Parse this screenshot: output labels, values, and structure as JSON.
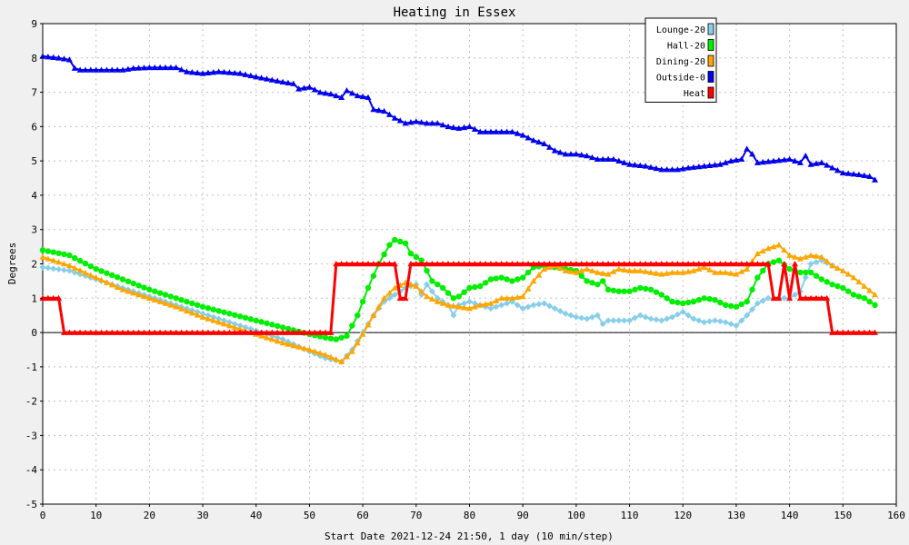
{
  "chart_data": {
    "type": "line",
    "title": "Heating in Essex",
    "xlabel": "Start Date 2021-12-24 21:50, 1 day (10 min/step)",
    "ylabel": "Degrees",
    "xlim": [
      0,
      160
    ],
    "ylim": [
      -5,
      9
    ],
    "x_ticks": [
      0,
      10,
      20,
      30,
      40,
      50,
      60,
      70,
      80,
      90,
      100,
      110,
      120,
      130,
      140,
      150,
      160
    ],
    "y_ticks": [
      -5,
      -4,
      -3,
      -2,
      -1,
      0,
      1,
      2,
      3,
      4,
      5,
      6,
      7,
      8,
      9
    ],
    "grid": true,
    "legend_position": "top-right",
    "series": [
      {
        "name": "Lounge-20",
        "color": "#87ceeb",
        "marker": "diamond",
        "points": [
          [
            0,
            1.9
          ],
          [
            5,
            1.8
          ],
          [
            10,
            1.55
          ],
          [
            15,
            1.3
          ],
          [
            20,
            1.05
          ],
          [
            25,
            0.8
          ],
          [
            30,
            0.55
          ],
          [
            35,
            0.3
          ],
          [
            40,
            0.05
          ],
          [
            45,
            -0.2
          ],
          [
            50,
            -0.55
          ],
          [
            53,
            -0.75
          ],
          [
            56,
            -0.85
          ],
          [
            58,
            -0.5
          ],
          [
            60,
            0
          ],
          [
            62,
            0.5
          ],
          [
            64,
            0.9
          ],
          [
            66,
            1.1
          ],
          [
            68,
            1.3
          ],
          [
            70,
            1.4
          ],
          [
            71,
            1.1
          ],
          [
            72,
            1.4
          ],
          [
            74,
            1.0
          ],
          [
            76,
            0.8
          ],
          [
            77,
            0.5
          ],
          [
            78,
            0.8
          ],
          [
            80,
            0.9
          ],
          [
            82,
            0.8
          ],
          [
            84,
            0.7
          ],
          [
            86,
            0.8
          ],
          [
            88,
            0.9
          ],
          [
            90,
            0.7
          ],
          [
            92,
            0.8
          ],
          [
            94,
            0.85
          ],
          [
            96,
            0.7
          ],
          [
            98,
            0.55
          ],
          [
            100,
            0.45
          ],
          [
            102,
            0.4
          ],
          [
            104,
            0.5
          ],
          [
            105,
            0.25
          ],
          [
            106,
            0.35
          ],
          [
            110,
            0.35
          ],
          [
            112,
            0.5
          ],
          [
            114,
            0.4
          ],
          [
            116,
            0.35
          ],
          [
            118,
            0.45
          ],
          [
            120,
            0.6
          ],
          [
            122,
            0.4
          ],
          [
            124,
            0.3
          ],
          [
            126,
            0.35
          ],
          [
            128,
            0.3
          ],
          [
            130,
            0.2
          ],
          [
            132,
            0.5
          ],
          [
            134,
            0.85
          ],
          [
            136,
            1.0
          ],
          [
            138,
            1.0
          ],
          [
            140,
            1.0
          ],
          [
            142,
            1.2
          ],
          [
            144,
            2.0
          ],
          [
            146,
            2.1
          ],
          [
            148,
            1.95
          ]
        ]
      },
      {
        "name": "Hall-20",
        "color": "#00ee00",
        "marker": "circle",
        "points": [
          [
            0,
            2.4
          ],
          [
            5,
            2.25
          ],
          [
            10,
            1.85
          ],
          [
            15,
            1.55
          ],
          [
            20,
            1.25
          ],
          [
            25,
            1.0
          ],
          [
            30,
            0.75
          ],
          [
            35,
            0.55
          ],
          [
            40,
            0.35
          ],
          [
            45,
            0.15
          ],
          [
            50,
            -0.05
          ],
          [
            53,
            -0.15
          ],
          [
            55,
            -0.2
          ],
          [
            57,
            -0.1
          ],
          [
            59,
            0.5
          ],
          [
            61,
            1.3
          ],
          [
            63,
            2.0
          ],
          [
            65,
            2.55
          ],
          [
            66,
            2.7
          ],
          [
            68,
            2.6
          ],
          [
            69,
            2.3
          ],
          [
            71,
            2.1
          ],
          [
            73,
            1.5
          ],
          [
            75,
            1.3
          ],
          [
            77,
            1.0
          ],
          [
            78,
            1.05
          ],
          [
            80,
            1.3
          ],
          [
            82,
            1.35
          ],
          [
            84,
            1.55
          ],
          [
            86,
            1.6
          ],
          [
            88,
            1.5
          ],
          [
            90,
            1.6
          ],
          [
            92,
            1.9
          ],
          [
            94,
            1.95
          ],
          [
            96,
            1.9
          ],
          [
            98,
            1.85
          ],
          [
            100,
            1.8
          ],
          [
            102,
            1.5
          ],
          [
            104,
            1.4
          ],
          [
            105,
            1.5
          ],
          [
            106,
            1.25
          ],
          [
            108,
            1.2
          ],
          [
            110,
            1.2
          ],
          [
            112,
            1.3
          ],
          [
            114,
            1.25
          ],
          [
            116,
            1.1
          ],
          [
            118,
            0.9
          ],
          [
            120,
            0.85
          ],
          [
            122,
            0.9
          ],
          [
            124,
            1.0
          ],
          [
            126,
            0.95
          ],
          [
            128,
            0.8
          ],
          [
            130,
            0.75
          ],
          [
            132,
            0.9
          ],
          [
            134,
            1.6
          ],
          [
            136,
            2.0
          ],
          [
            138,
            2.1
          ],
          [
            140,
            1.85
          ],
          [
            142,
            1.75
          ],
          [
            144,
            1.75
          ],
          [
            146,
            1.55
          ],
          [
            148,
            1.4
          ],
          [
            150,
            1.3
          ],
          [
            152,
            1.1
          ],
          [
            154,
            1.0
          ],
          [
            156,
            0.8
          ]
        ]
      },
      {
        "name": "Dining-20",
        "color": "#ffa500",
        "marker": "triangle",
        "points": [
          [
            0,
            2.2
          ],
          [
            5,
            1.95
          ],
          [
            10,
            1.6
          ],
          [
            15,
            1.25
          ],
          [
            20,
            1.0
          ],
          [
            25,
            0.75
          ],
          [
            30,
            0.45
          ],
          [
            35,
            0.2
          ],
          [
            40,
            -0.05
          ],
          [
            45,
            -0.3
          ],
          [
            50,
            -0.5
          ],
          [
            53,
            -0.65
          ],
          [
            56,
            -0.85
          ],
          [
            58,
            -0.55
          ],
          [
            60,
            -0.05
          ],
          [
            62,
            0.5
          ],
          [
            64,
            1.0
          ],
          [
            66,
            1.3
          ],
          [
            68,
            1.45
          ],
          [
            70,
            1.35
          ],
          [
            72,
            1.05
          ],
          [
            74,
            0.9
          ],
          [
            76,
            0.8
          ],
          [
            78,
            0.75
          ],
          [
            80,
            0.7
          ],
          [
            82,
            0.8
          ],
          [
            84,
            0.85
          ],
          [
            86,
            1.0
          ],
          [
            88,
            1.0
          ],
          [
            90,
            1.05
          ],
          [
            92,
            1.5
          ],
          [
            94,
            1.85
          ],
          [
            96,
            1.95
          ],
          [
            98,
            1.8
          ],
          [
            100,
            1.75
          ],
          [
            102,
            1.85
          ],
          [
            104,
            1.75
          ],
          [
            106,
            1.7
          ],
          [
            108,
            1.85
          ],
          [
            110,
            1.8
          ],
          [
            112,
            1.8
          ],
          [
            114,
            1.75
          ],
          [
            116,
            1.7
          ],
          [
            118,
            1.75
          ],
          [
            120,
            1.75
          ],
          [
            122,
            1.8
          ],
          [
            124,
            1.9
          ],
          [
            126,
            1.75
          ],
          [
            128,
            1.75
          ],
          [
            130,
            1.7
          ],
          [
            132,
            1.85
          ],
          [
            134,
            2.3
          ],
          [
            136,
            2.45
          ],
          [
            138,
            2.55
          ],
          [
            140,
            2.25
          ],
          [
            142,
            2.15
          ],
          [
            144,
            2.25
          ],
          [
            146,
            2.2
          ],
          [
            148,
            1.95
          ],
          [
            150,
            1.8
          ],
          [
            152,
            1.6
          ],
          [
            154,
            1.35
          ],
          [
            156,
            1.1
          ]
        ]
      },
      {
        "name": "Outside-0",
        "color": "#0000ee",
        "marker": "triangle",
        "points": [
          [
            0,
            8.05
          ],
          [
            3,
            8.0
          ],
          [
            5,
            7.95
          ],
          [
            6,
            7.7
          ],
          [
            7,
            7.65
          ],
          [
            10,
            7.65
          ],
          [
            15,
            7.65
          ],
          [
            17,
            7.7
          ],
          [
            20,
            7.72
          ],
          [
            25,
            7.72
          ],
          [
            27,
            7.6
          ],
          [
            30,
            7.55
          ],
          [
            33,
            7.6
          ],
          [
            37,
            7.55
          ],
          [
            40,
            7.45
          ],
          [
            45,
            7.3
          ],
          [
            47,
            7.25
          ],
          [
            48,
            7.1
          ],
          [
            50,
            7.15
          ],
          [
            52,
            7.0
          ],
          [
            54,
            6.95
          ],
          [
            56,
            6.85
          ],
          [
            57,
            7.05
          ],
          [
            59,
            6.9
          ],
          [
            61,
            6.85
          ],
          [
            62,
            6.5
          ],
          [
            64,
            6.45
          ],
          [
            66,
            6.25
          ],
          [
            68,
            6.1
          ],
          [
            70,
            6.15
          ],
          [
            72,
            6.1
          ],
          [
            74,
            6.1
          ],
          [
            76,
            6.0
          ],
          [
            78,
            5.95
          ],
          [
            80,
            6.0
          ],
          [
            82,
            5.85
          ],
          [
            85,
            5.85
          ],
          [
            88,
            5.85
          ],
          [
            90,
            5.75
          ],
          [
            92,
            5.6
          ],
          [
            94,
            5.5
          ],
          [
            96,
            5.3
          ],
          [
            98,
            5.2
          ],
          [
            100,
            5.2
          ],
          [
            102,
            5.15
          ],
          [
            104,
            5.05
          ],
          [
            107,
            5.05
          ],
          [
            110,
            4.9
          ],
          [
            113,
            4.85
          ],
          [
            116,
            4.75
          ],
          [
            119,
            4.75
          ],
          [
            121,
            4.8
          ],
          [
            124,
            4.85
          ],
          [
            127,
            4.9
          ],
          [
            129,
            5.0
          ],
          [
            131,
            5.05
          ],
          [
            132,
            5.35
          ],
          [
            133,
            5.2
          ],
          [
            134,
            4.95
          ],
          [
            137,
            5.0
          ],
          [
            140,
            5.05
          ],
          [
            142,
            4.95
          ],
          [
            143,
            5.15
          ],
          [
            144,
            4.9
          ],
          [
            146,
            4.95
          ],
          [
            148,
            4.8
          ],
          [
            150,
            4.65
          ],
          [
            153,
            4.6
          ],
          [
            155,
            4.55
          ],
          [
            156,
            4.45
          ]
        ]
      },
      {
        "name": "Heat",
        "color": "#ff0000",
        "marker": "triangle",
        "points": [
          [
            0,
            1
          ],
          [
            3,
            1
          ],
          [
            4,
            0
          ],
          [
            54,
            0
          ],
          [
            55,
            2
          ],
          [
            66,
            2
          ],
          [
            67,
            1
          ],
          [
            68,
            1
          ],
          [
            69,
            2
          ],
          [
            136,
            2
          ],
          [
            137,
            1
          ],
          [
            138,
            1
          ],
          [
            139,
            2
          ],
          [
            140,
            1
          ],
          [
            141,
            2
          ],
          [
            142,
            1
          ],
          [
            147,
            1
          ],
          [
            148,
            0
          ],
          [
            156,
            0
          ]
        ]
      }
    ]
  }
}
